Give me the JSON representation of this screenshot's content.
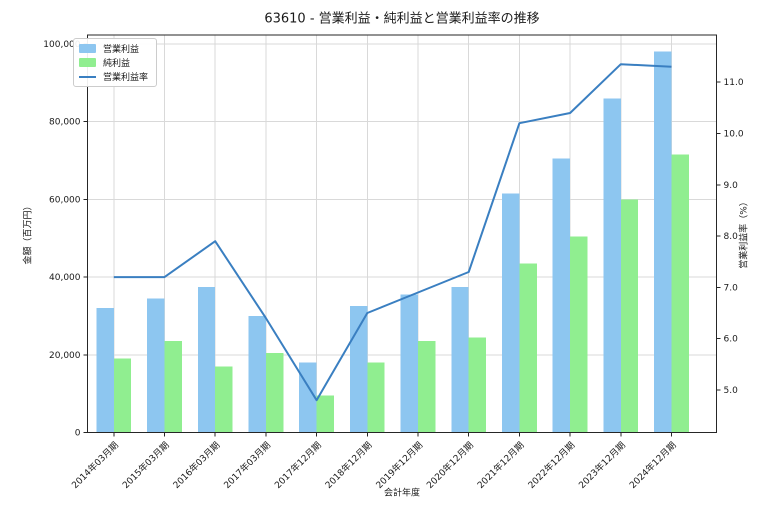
{
  "chart_data": {
    "type": "bar",
    "title": "63610 - 営業利益・純利益と営業利益率の推移",
    "xlabel": "会計年度",
    "ylabel_left": "金額（百万円）",
    "ylabel_right": "営業利益率（%）",
    "categories": [
      "2014年03月期",
      "2015年03月期",
      "2016年03月期",
      "2017年03月期",
      "2017年12月期",
      "2018年12月期",
      "2019年12月期",
      "2020年12月期",
      "2021年12月期",
      "2022年12月期",
      "2023年12月期",
      "2024年12月期"
    ],
    "series": [
      {
        "name": "営業利益",
        "kind": "bar",
        "axis": "left",
        "color": "#8dc6f0",
        "values": [
          32000,
          34500,
          37500,
          30000,
          18000,
          32500,
          35500,
          37500,
          61500,
          70500,
          86000,
          98000
        ]
      },
      {
        "name": "純利益",
        "kind": "bar",
        "axis": "left",
        "color": "#90ee90",
        "values": [
          19000,
          23500,
          17000,
          20500,
          9500,
          18000,
          23500,
          24500,
          43500,
          50500,
          60000,
          71500
        ]
      },
      {
        "name": "営業利益率",
        "kind": "line",
        "axis": "right",
        "color": "#3a7fc1",
        "values": [
          7.2,
          7.2,
          7.9,
          6.4,
          4.8,
          6.5,
          6.9,
          7.3,
          10.2,
          10.4,
          11.35,
          11.3
        ]
      }
    ],
    "ylim_left": [
      0,
      102300
    ],
    "ylim_right": [
      4.17,
      11.92
    ],
    "yticks_left": [
      0,
      20000,
      40000,
      60000,
      80000,
      100000
    ],
    "yticks_right": [
      5,
      6,
      7,
      8,
      9,
      10,
      11
    ],
    "grid": true,
    "legend_position": "upper-left",
    "colors": {
      "grid": "#d9d9d9",
      "spine": "#262626",
      "tick_label": "#1a1a1a",
      "background": "#ffffff"
    }
  }
}
